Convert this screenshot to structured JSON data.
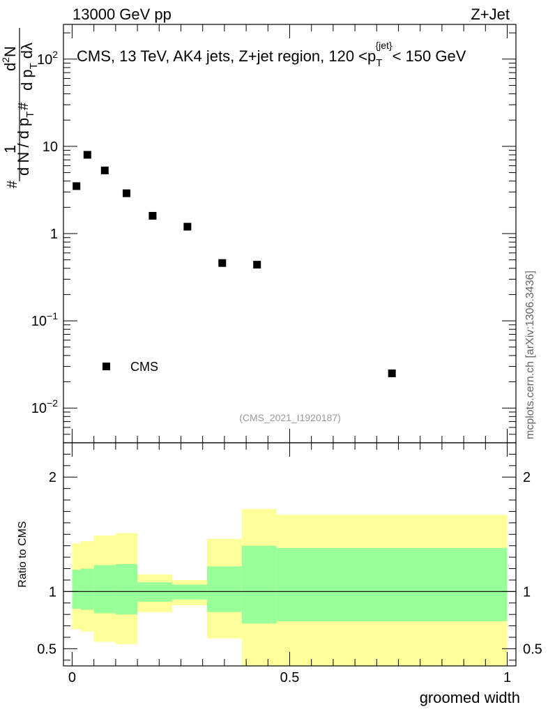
{
  "header": {
    "left_title": "13000 GeV pp",
    "right_title": "Z+Jet"
  },
  "watermark": "mcplots.cern.ch [arXiv:1306.3436]",
  "colors": {
    "band_outer": "#ffff99",
    "band_inner": "#99ff99",
    "marker": "#000000",
    "analysis_label": "#999999"
  },
  "chart_data": [
    {
      "name": "main-panel",
      "type": "scatter",
      "title": "CMS, 13 TeV, AK4 jets, Z+jet region, 120 <p_T^{jet}< 150 GeV",
      "title_parts": {
        "prefix": "CMS, 13 TeV, AK4 jets, Z+jet region, 120 <p",
        "sub": "T",
        "sup": "{jet}",
        "suffix": "< 150 GeV"
      },
      "analysis_id": "(CMS_2021_I1920187)",
      "ylabel_parts": {
        "hash1": "#",
        "one": "1",
        "dN": "d N / d p",
        "T": "T",
        "hash2": "#",
        "d2N": "d",
        "two": "2",
        "N": "N",
        "dp": "d p",
        "T2": "T",
        "dlambda": "dλ"
      },
      "yscale": "log",
      "ylim": [
        0.004,
        250
      ],
      "xlim": [
        -0.02,
        1.02
      ],
      "y_ticks": [
        {
          "value": 0.01,
          "base": "10",
          "exp": "−2"
        },
        {
          "value": 0.1,
          "base": "10",
          "exp": "−1"
        },
        {
          "value": 1,
          "base": "1",
          "exp": ""
        },
        {
          "value": 10,
          "base": "10",
          "exp": ""
        },
        {
          "value": 100,
          "base": "10",
          "exp": "2"
        }
      ],
      "series": [
        {
          "name": "CMS",
          "x": [
            0.01,
            0.035,
            0.075,
            0.125,
            0.185,
            0.265,
            0.345,
            0.425,
            0.735
          ],
          "y": [
            3.5,
            8.0,
            5.3,
            2.9,
            1.6,
            1.2,
            0.46,
            0.44,
            0.025
          ]
        }
      ],
      "legend": {
        "label": "CMS",
        "position": "lower-left"
      }
    },
    {
      "name": "ratio-panel",
      "type": "area",
      "ylabel": "Ratio to CMS",
      "xlabel": "groomed width",
      "ylim": [
        0.35,
        2.3
      ],
      "xlim": [
        -0.02,
        1.02
      ],
      "x_ticks": [
        {
          "value": 0,
          "label": "0"
        },
        {
          "value": 0.5,
          "label": "0.5"
        },
        {
          "value": 1,
          "label": "1"
        }
      ],
      "y_ticks": [
        {
          "value": 0.5,
          "label": "0.5"
        },
        {
          "value": 1,
          "label": "1"
        },
        {
          "value": 2,
          "label": "2"
        }
      ],
      "reference_line": 1,
      "bins": [
        {
          "x0": 0.0,
          "x1": 0.02,
          "in_lo": 0.85,
          "in_hi": 1.19,
          "out_lo": 0.67,
          "out_hi": 1.42
        },
        {
          "x0": 0.02,
          "x1": 0.05,
          "in_lo": 0.84,
          "in_hi": 1.2,
          "out_lo": 0.65,
          "out_hi": 1.44
        },
        {
          "x0": 0.05,
          "x1": 0.1,
          "in_lo": 0.81,
          "in_hi": 1.23,
          "out_lo": 0.56,
          "out_hi": 1.49
        },
        {
          "x0": 0.1,
          "x1": 0.15,
          "in_lo": 0.8,
          "in_hi": 1.24,
          "out_lo": 0.54,
          "out_hi": 1.51
        },
        {
          "x0": 0.15,
          "x1": 0.23,
          "in_lo": 0.91,
          "in_hi": 1.08,
          "out_lo": 0.82,
          "out_hi": 1.15
        },
        {
          "x0": 0.23,
          "x1": 0.31,
          "in_lo": 0.93,
          "in_hi": 1.06,
          "out_lo": 0.88,
          "out_hi": 1.1
        },
        {
          "x0": 0.31,
          "x1": 0.39,
          "in_lo": 0.82,
          "in_hi": 1.22,
          "out_lo": 0.59,
          "out_hi": 1.46
        },
        {
          "x0": 0.39,
          "x1": 0.47,
          "in_lo": 0.72,
          "in_hi": 1.4,
          "out_lo": 0.35,
          "out_hi": 1.72
        },
        {
          "x0": 0.47,
          "x1": 1.0,
          "in_lo": 0.74,
          "in_hi": 1.38,
          "out_lo": 0.35,
          "out_hi": 1.67
        }
      ]
    }
  ]
}
